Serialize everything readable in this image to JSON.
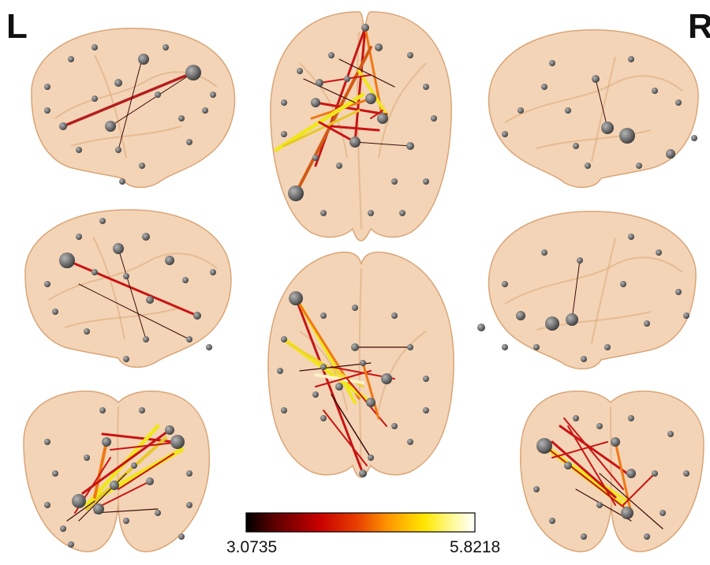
{
  "labels": {
    "left": "L",
    "right": "R"
  },
  "colorbar": {
    "min": "3.0735",
    "max": "5.8218",
    "stops": [
      "#000000",
      "#5a0000",
      "#c80000",
      "#e63c00",
      "#ff9600",
      "#ffe600",
      "#fffa96",
      "#ffffff"
    ]
  },
  "brain": {
    "fill": "#f1c9a4",
    "stroke": "#d9a577",
    "node": "#6e6e6e"
  }
}
